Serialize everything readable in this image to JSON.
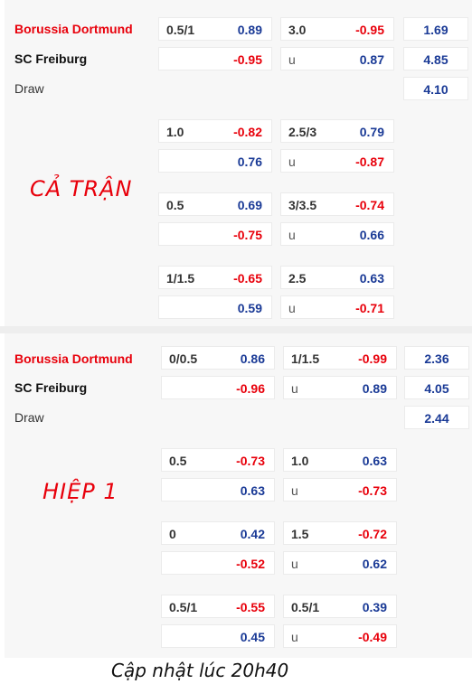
{
  "full_time": {
    "home_team": "Borussia Dortmund",
    "away_team": "SC Freiburg",
    "draw_label": "Draw",
    "stamp": "CẢ TRẬN",
    "lines": [
      {
        "hcp": "0.5/1",
        "hcp_home": "0.89",
        "hcp_away": "-0.95",
        "ou": "3.0",
        "over": "-0.95",
        "u": "u",
        "under": "0.87"
      },
      {
        "hcp": "1.0",
        "hcp_home": "-0.82",
        "hcp_away": "0.76",
        "ou": "2.5/3",
        "over": "0.79",
        "u": "u",
        "under": "-0.87"
      },
      {
        "hcp": "0.5",
        "hcp_home": "0.69",
        "hcp_away": "-0.75",
        "ou": "3/3.5",
        "over": "-0.74",
        "u": "u",
        "under": "0.66"
      },
      {
        "hcp": "1/1.5",
        "hcp_home": "-0.65",
        "hcp_away": "0.59",
        "ou": "2.5",
        "over": "0.63",
        "u": "u",
        "under": "-0.71"
      }
    ],
    "x12": {
      "home": "1.69",
      "away": "4.85",
      "draw": "4.10"
    }
  },
  "first_half": {
    "home_team": "Borussia Dortmund",
    "away_team": "SC Freiburg",
    "draw_label": "Draw",
    "stamp": "HIỆP 1",
    "lines": [
      {
        "hcp": "0/0.5",
        "hcp_home": "0.86",
        "hcp_away": "-0.96",
        "ou": "1/1.5",
        "over": "-0.99",
        "u": "u",
        "under": "0.89"
      },
      {
        "hcp": "0.5",
        "hcp_home": "-0.73",
        "hcp_away": "0.63",
        "ou": "1.0",
        "over": "0.63",
        "u": "u",
        "under": "-0.73"
      },
      {
        "hcp": "0",
        "hcp_home": "0.42",
        "hcp_away": "-0.52",
        "ou": "1.5",
        "over": "-0.72",
        "u": "u",
        "under": "0.62"
      },
      {
        "hcp": "0.5/1",
        "hcp_home": "-0.55",
        "hcp_away": "0.45",
        "ou": "0.5/1",
        "over": "0.39",
        "u": "u",
        "under": "-0.49"
      }
    ],
    "x12": {
      "home": "2.36",
      "away": "4.05",
      "draw": "2.44"
    }
  },
  "footer": "Cập nhật lúc 20h40",
  "colors": {
    "negative": "#e8000b",
    "positive": "#1a3a96",
    "home_team": "#e8000b"
  }
}
